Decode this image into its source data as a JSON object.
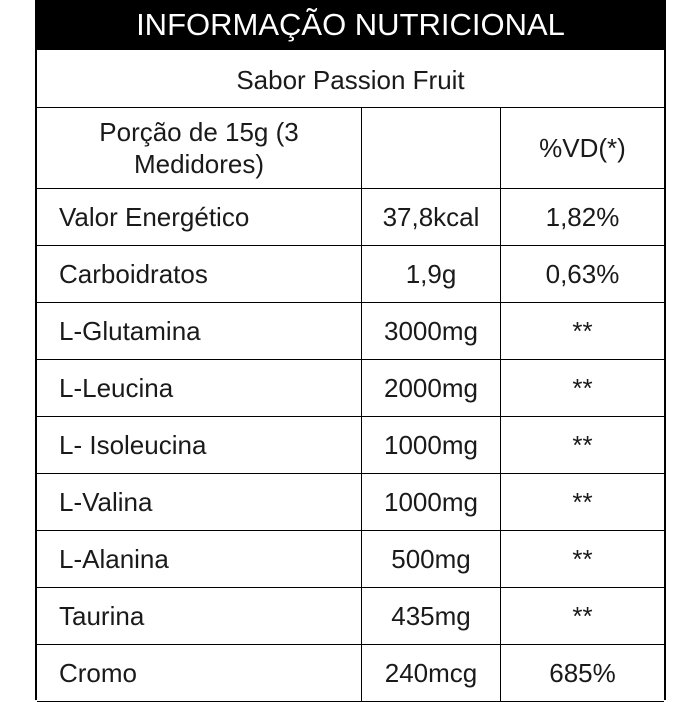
{
  "title": "INFORMAÇÃO NUTRICIONAL",
  "flavor": "Sabor Passion Fruit",
  "header": {
    "portion_line1": "Porção de 15g (3",
    "portion_line2": "Medidores)",
    "amount": "",
    "dv": "%VD(*)"
  },
  "rows": [
    {
      "name": "Valor Energético",
      "amount": "37,8kcal",
      "dv": "1,82%"
    },
    {
      "name": "Carboidratos",
      "amount": "1,9g",
      "dv": "0,63%"
    },
    {
      "name": "L-Glutamina",
      "amount": "3000mg",
      "dv": "**"
    },
    {
      "name": "L-Leucina",
      "amount": "2000mg",
      "dv": "**"
    },
    {
      "name": "L- Isoleucina",
      "amount": "1000mg",
      "dv": "**"
    },
    {
      "name": "L-Valina",
      "amount": "1000mg",
      "dv": "**"
    },
    {
      "name": "L-Alanina",
      "amount": "500mg",
      "dv": "**"
    },
    {
      "name": "Taurina",
      "amount": "435mg",
      "dv": "**"
    },
    {
      "name": "Cromo",
      "amount": "240mcg",
      "dv": "685%"
    }
  ]
}
